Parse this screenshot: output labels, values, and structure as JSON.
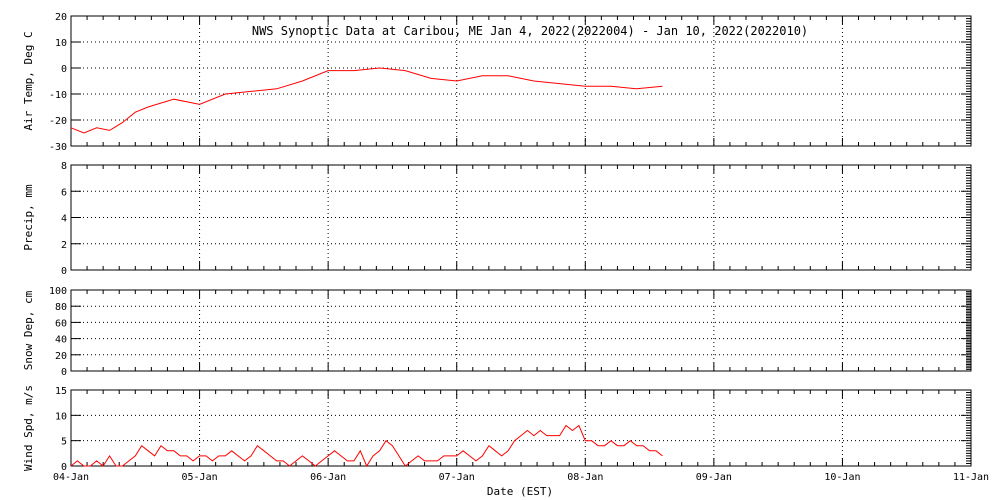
{
  "title": "NWS Synoptic Data at Caribou, ME   Jan  4, 2022(2022004) - Jan 10, 2022(2022010)",
  "xlabel": "Date (EST)",
  "colors": {
    "series": "#ff0000",
    "axis": "#000000",
    "background": "#ffffff"
  },
  "chart_data": [
    {
      "type": "line",
      "ylabel": "Air Temp, Deg C",
      "ylim": [
        -30,
        20
      ],
      "yticks": [
        -30,
        -20,
        -10,
        0,
        10,
        20
      ],
      "x": [
        0,
        0.1,
        0.2,
        0.3,
        0.4,
        0.5,
        0.6,
        0.8,
        1.0,
        1.2,
        1.4,
        1.6,
        1.8,
        2.0,
        2.2,
        2.4,
        2.6,
        2.8,
        3.0,
        3.2,
        3.4,
        3.6,
        3.8,
        4.0,
        4.2,
        4.4,
        4.6
      ],
      "values": [
        -23,
        -25,
        -23,
        -24,
        -21,
        -17,
        -15,
        -12,
        -14,
        -10,
        -9,
        -8,
        -5,
        -1,
        -1,
        0,
        -1,
        -4,
        -5,
        -3,
        -3,
        -5,
        -6,
        -7,
        -7,
        -8,
        -7
      ],
      "grid": true
    },
    {
      "type": "line",
      "ylabel": "Precip, mm",
      "ylim": [
        0,
        8
      ],
      "yticks": [
        0,
        2,
        4,
        6,
        8
      ],
      "x": [],
      "values": [],
      "grid": true
    },
    {
      "type": "line",
      "ylabel": "Snow Dep, cm",
      "ylim": [
        0,
        100
      ],
      "yticks": [
        0,
        20,
        40,
        60,
        80,
        100
      ],
      "x": [],
      "values": [],
      "grid": true
    },
    {
      "type": "line",
      "ylabel": "Wind Spd, m/s",
      "ylim": [
        0,
        15
      ],
      "yticks": [
        0,
        5,
        10,
        15
      ],
      "x": [
        0,
        0.05,
        0.1,
        0.15,
        0.2,
        0.25,
        0.3,
        0.35,
        0.4,
        0.45,
        0.5,
        0.55,
        0.6,
        0.65,
        0.7,
        0.75,
        0.8,
        0.85,
        0.9,
        0.95,
        1.0,
        1.05,
        1.1,
        1.15,
        1.2,
        1.25,
        1.3,
        1.35,
        1.4,
        1.45,
        1.5,
        1.55,
        1.6,
        1.65,
        1.7,
        1.75,
        1.8,
        1.85,
        1.9,
        1.95,
        2.0,
        2.05,
        2.1,
        2.15,
        2.2,
        2.25,
        2.3,
        2.35,
        2.4,
        2.45,
        2.5,
        2.55,
        2.6,
        2.65,
        2.7,
        2.75,
        2.8,
        2.85,
        2.9,
        2.95,
        3.0,
        3.05,
        3.1,
        3.15,
        3.2,
        3.25,
        3.3,
        3.35,
        3.4,
        3.45,
        3.5,
        3.55,
        3.6,
        3.65,
        3.7,
        3.75,
        3.8,
        3.85,
        3.9,
        3.95,
        4.0,
        4.05,
        4.1,
        4.15,
        4.2,
        4.25,
        4.3,
        4.35,
        4.4,
        4.45,
        4.5,
        4.55,
        4.6
      ],
      "values": [
        0,
        1,
        0,
        0,
        1,
        0,
        2,
        0,
        0,
        1,
        2,
        4,
        3,
        2,
        4,
        3,
        3,
        2,
        2,
        1,
        2,
        2,
        1,
        2,
        2,
        3,
        2,
        1,
        2,
        4,
        3,
        2,
        1,
        1,
        0,
        1,
        2,
        1,
        0,
        1,
        2,
        3,
        2,
        1,
        1,
        3,
        0,
        2,
        3,
        5,
        4,
        2,
        0,
        1,
        2,
        1,
        1,
        1,
        2,
        2,
        2,
        3,
        2,
        1,
        2,
        4,
        3,
        2,
        3,
        5,
        6,
        7,
        6,
        7,
        6,
        6,
        6,
        8,
        7,
        8,
        5,
        5,
        4,
        4,
        5,
        4,
        4,
        5,
        4,
        4,
        3,
        3,
        2
      ],
      "grid": true
    }
  ],
  "xaxis": {
    "days": 7,
    "labels": [
      "04-Jan",
      "05-Jan",
      "06-Jan",
      "07-Jan",
      "08-Jan",
      "09-Jan",
      "10-Jan",
      "11-Jan"
    ]
  }
}
